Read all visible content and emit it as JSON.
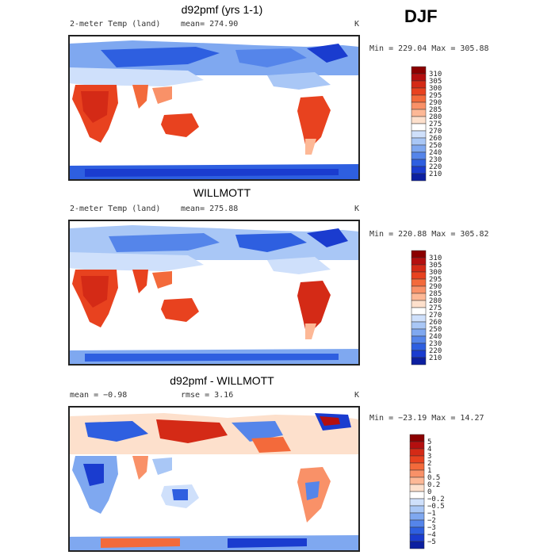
{
  "season": "DJF",
  "chart_data": [
    {
      "type": "heatmap",
      "title": "d92pmf (yrs 1-1)",
      "field_label": "2-meter Temp (land)",
      "stat_text": "mean= 274.90",
      "units": "K",
      "range_text": "Min = 229.04 Max = 305.88",
      "min": 229.04,
      "max": 305.88,
      "mean": 274.9,
      "colorbar": {
        "levels": [
          "310",
          "305",
          "300",
          "295",
          "290",
          "285",
          "280",
          "275",
          "270",
          "260",
          "250",
          "240",
          "230",
          "220",
          "210"
        ],
        "colors": [
          "#8b0000",
          "#b40f0f",
          "#d42a16",
          "#e8421f",
          "#f36a3b",
          "#f99168",
          "#fdb896",
          "#fde0cc",
          "#ffffff",
          "#cfe0fb",
          "#a9c7f6",
          "#7fa8f0",
          "#5585ea",
          "#2e5fe0",
          "#1a3ccf",
          "#0c1fa0"
        ]
      }
    },
    {
      "type": "heatmap",
      "title": "WILLMOTT",
      "field_label": "2-meter Temp (land)",
      "stat_text": "mean= 275.88",
      "units": "K",
      "range_text": "Min = 220.88 Max = 305.82",
      "min": 220.88,
      "max": 305.82,
      "mean": 275.88,
      "colorbar": {
        "levels": [
          "310",
          "305",
          "300",
          "295",
          "290",
          "285",
          "280",
          "275",
          "270",
          "260",
          "250",
          "240",
          "230",
          "220",
          "210"
        ],
        "colors": [
          "#8b0000",
          "#b40f0f",
          "#d42a16",
          "#e8421f",
          "#f36a3b",
          "#f99168",
          "#fdb896",
          "#fde0cc",
          "#ffffff",
          "#cfe0fb",
          "#a9c7f6",
          "#7fa8f0",
          "#5585ea",
          "#2e5fe0",
          "#1a3ccf",
          "#0c1fa0"
        ]
      }
    },
    {
      "type": "heatmap",
      "title": "d92pmf - WILLMOTT",
      "stat_left": "mean =   −0.98",
      "stat_right": "rmse =    3.16",
      "units": "K",
      "range_text": "Min = −23.19 Max =   14.27",
      "min": -23.19,
      "max": 14.27,
      "mean": -0.98,
      "rmse": 3.16,
      "colorbar": {
        "levels": [
          "5",
          "4",
          "3",
          "2",
          "1",
          "0.5",
          "0.2",
          "0",
          "−0.2",
          "−0.5",
          "−1",
          "−2",
          "−3",
          "−4",
          "−5"
        ],
        "colors": [
          "#8b0000",
          "#b40f0f",
          "#d42a16",
          "#e8421f",
          "#f36a3b",
          "#f99168",
          "#fdb896",
          "#fde0cc",
          "#ffffff",
          "#cfe0fb",
          "#a9c7f6",
          "#7fa8f0",
          "#5585ea",
          "#2e5fe0",
          "#1a3ccf",
          "#0c1fa0"
        ]
      }
    }
  ],
  "palette": {
    "warm": [
      "#8b0000",
      "#d42a16",
      "#f36a3b",
      "#fdb896"
    ],
    "cool": [
      "#cfe0fb",
      "#7fa8f0",
      "#2e5fe0",
      "#0c1fa0"
    ]
  }
}
